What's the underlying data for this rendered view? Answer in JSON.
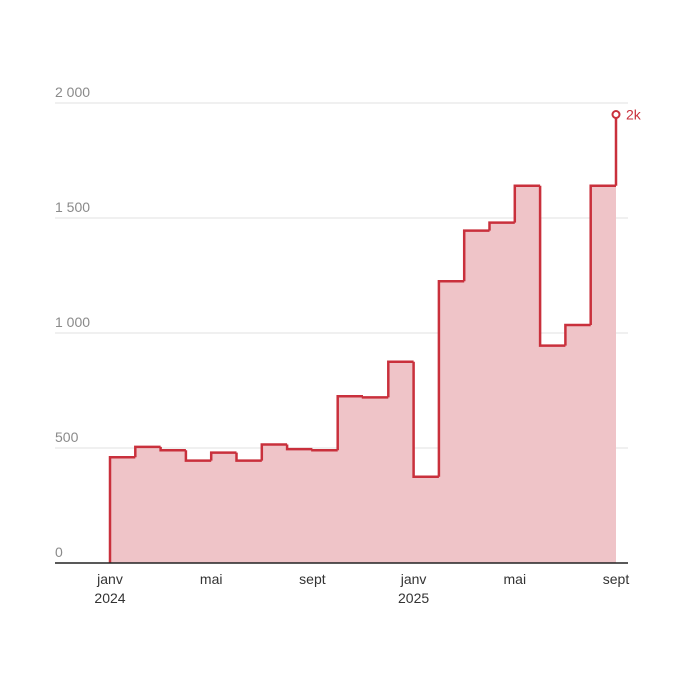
{
  "colors": {
    "line": "#c9303c",
    "fill": "#efc4c8",
    "grid": "#e2e2e2",
    "axis": "#222222"
  },
  "chart_data": {
    "type": "area",
    "step": "post",
    "x": [
      "2024-01",
      "2024-02",
      "2024-03",
      "2024-04",
      "2024-05",
      "2024-06",
      "2024-07",
      "2024-08",
      "2024-09",
      "2024-10",
      "2024-11",
      "2024-12",
      "2025-01",
      "2025-02",
      "2025-03",
      "2025-04",
      "2025-05",
      "2025-06",
      "2025-07",
      "2025-08",
      "2025-09"
    ],
    "values": [
      460,
      505,
      490,
      445,
      480,
      445,
      515,
      495,
      490,
      725,
      720,
      875,
      375,
      1225,
      1445,
      1480,
      1640,
      945,
      1035,
      1640,
      1950
    ],
    "ylim": [
      0,
      2000
    ],
    "yticks": [
      0,
      500,
      1000,
      1500,
      2000
    ],
    "ytick_labels": [
      "0",
      "500",
      "1 000",
      "1 500",
      "2 000"
    ],
    "xticks": [
      {
        "at": "2024-01",
        "line1": "janv",
        "line2": "2024"
      },
      {
        "at": "2024-05",
        "line1": "mai",
        "line2": ""
      },
      {
        "at": "2024-09",
        "line1": "sept",
        "line2": ""
      },
      {
        "at": "2025-01",
        "line1": "janv",
        "line2": "2025"
      },
      {
        "at": "2025-05",
        "line1": "mai",
        "line2": ""
      },
      {
        "at": "2025-09",
        "line1": "sept",
        "line2": ""
      }
    ],
    "end_label": "2k",
    "grid": true,
    "xlabel": "",
    "ylabel": "",
    "title": ""
  }
}
